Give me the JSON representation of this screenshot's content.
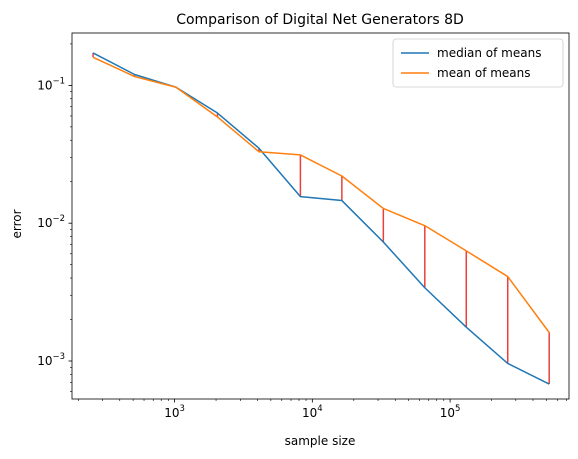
{
  "chart_data": {
    "type": "line",
    "title": "Comparison of Digital Net Generators 8D",
    "xlabel": "sample size",
    "ylabel": "error",
    "xscale": "log",
    "yscale": "log",
    "xlim": [
      180,
      730000
    ],
    "ylim": [
      0.00053,
      0.24
    ],
    "grid": false,
    "legend": {
      "placement": "top-right"
    },
    "x": [
      256,
      512,
      1024,
      2048,
      4096,
      8192,
      16384,
      32768,
      65536,
      131072,
      262144,
      524288
    ],
    "series": [
      {
        "name": "median of means",
        "color": "#1f77b4",
        "values": [
          0.172,
          0.12,
          0.097,
          0.063,
          0.035,
          0.0156,
          0.0146,
          0.0073,
          0.0034,
          0.00176,
          0.00096,
          0.00068
        ]
      },
      {
        "name": "mean of means",
        "color": "#ff7f0e",
        "values": [
          0.16,
          0.116,
          0.097,
          0.059,
          0.033,
          0.0313,
          0.022,
          0.0128,
          0.0096,
          0.0063,
          0.0041,
          0.00161
        ]
      }
    ],
    "difference_lines_color": "#e8413c",
    "x_ticks": [
      {
        "value": 1000,
        "base": "10",
        "exp": "3"
      },
      {
        "value": 10000,
        "base": "10",
        "exp": "4"
      },
      {
        "value": 100000,
        "base": "10",
        "exp": "5"
      }
    ],
    "y_ticks": [
      {
        "value": 0.001,
        "base": "10",
        "exp": "−3"
      },
      {
        "value": 0.01,
        "base": "10",
        "exp": "−2"
      },
      {
        "value": 0.1,
        "base": "10",
        "exp": "−1"
      }
    ]
  }
}
